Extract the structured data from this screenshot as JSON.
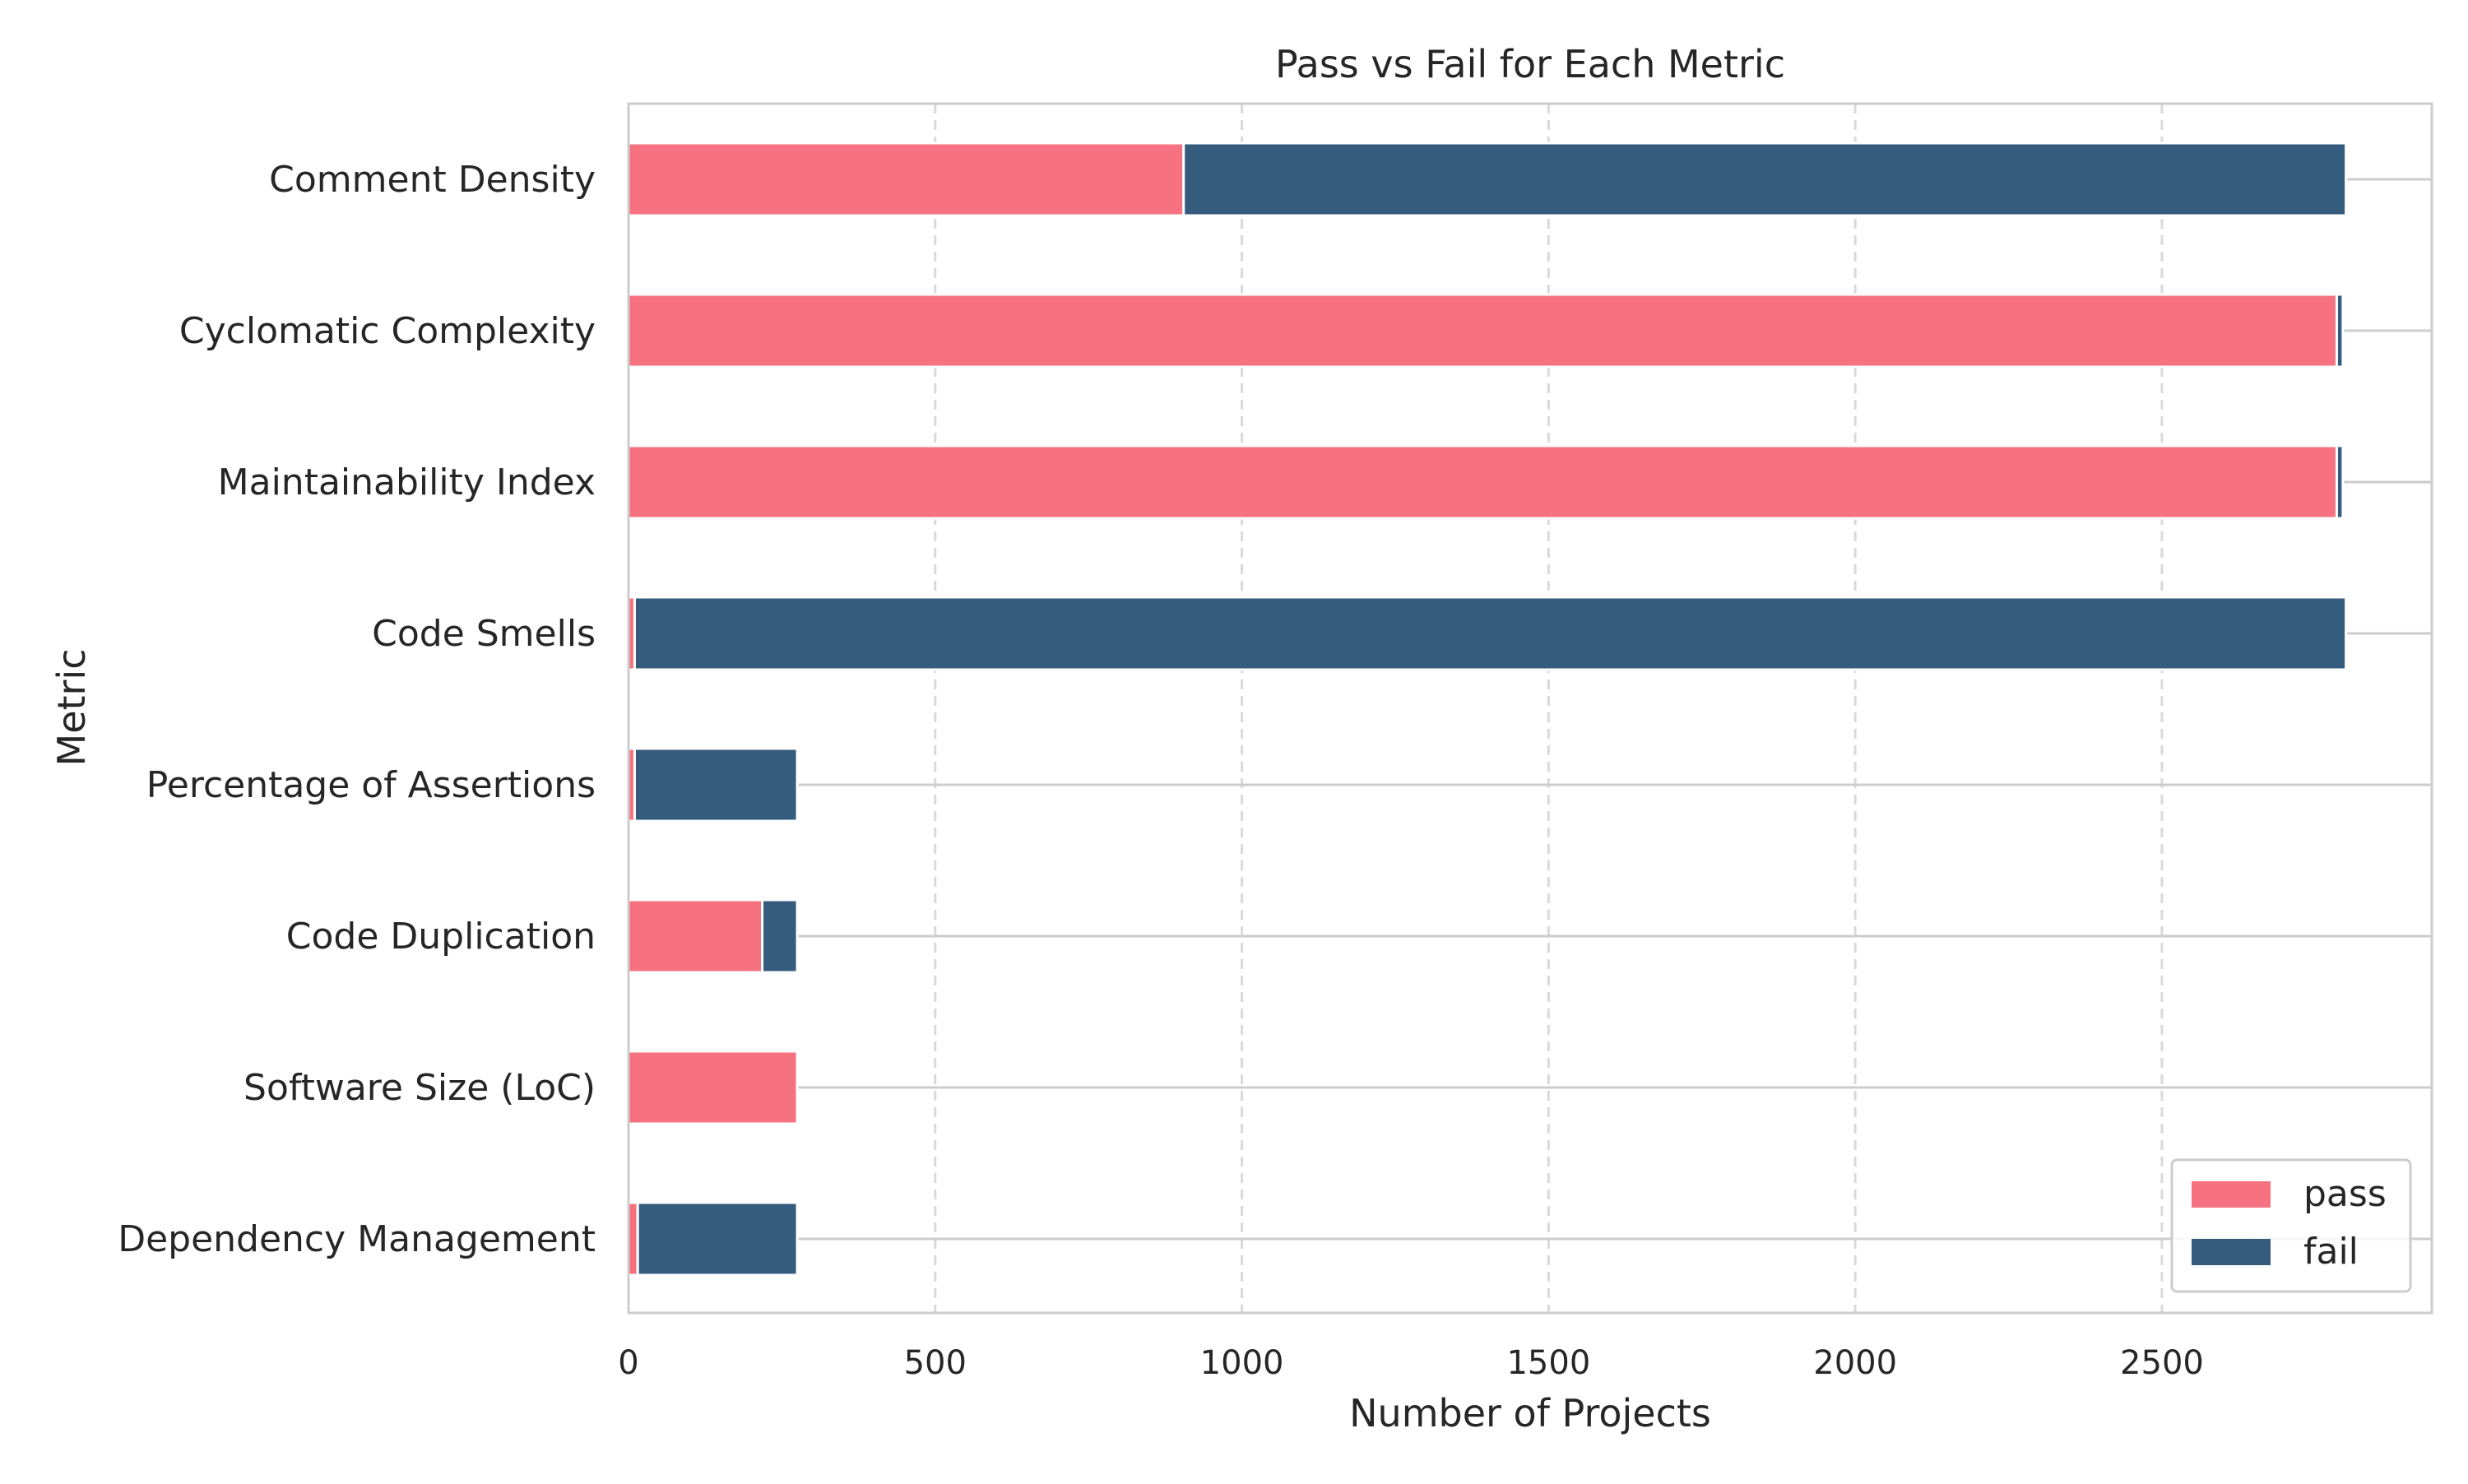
{
  "chart_data": {
    "type": "bar",
    "orientation": "horizontal",
    "stacked": true,
    "title": "Pass vs Fail for Each Metric",
    "xlabel": "Number of Projects",
    "ylabel": "Metric",
    "xlim": [
      0,
      2940
    ],
    "xticks": [
      0,
      500,
      1000,
      1500,
      2000,
      2500
    ],
    "grid": "vertical dashed",
    "legend_position": "bottom-right",
    "categories": [
      "Comment Density",
      "Cyclomatic Complexity",
      "Maintainability Index",
      "Code Smells",
      "Percentage of Assertions",
      "Code Duplication",
      "Software Size (LoC)",
      "Dependency Management"
    ],
    "series": [
      {
        "name": "pass",
        "color": "#f67280",
        "values": [
          905,
          2785,
          2785,
          10,
          10,
          218,
          275,
          15
        ]
      },
      {
        "name": "fail",
        "color": "#355c7d",
        "values": [
          1895,
          10,
          10,
          2790,
          265,
          57,
          0,
          260
        ]
      }
    ]
  }
}
